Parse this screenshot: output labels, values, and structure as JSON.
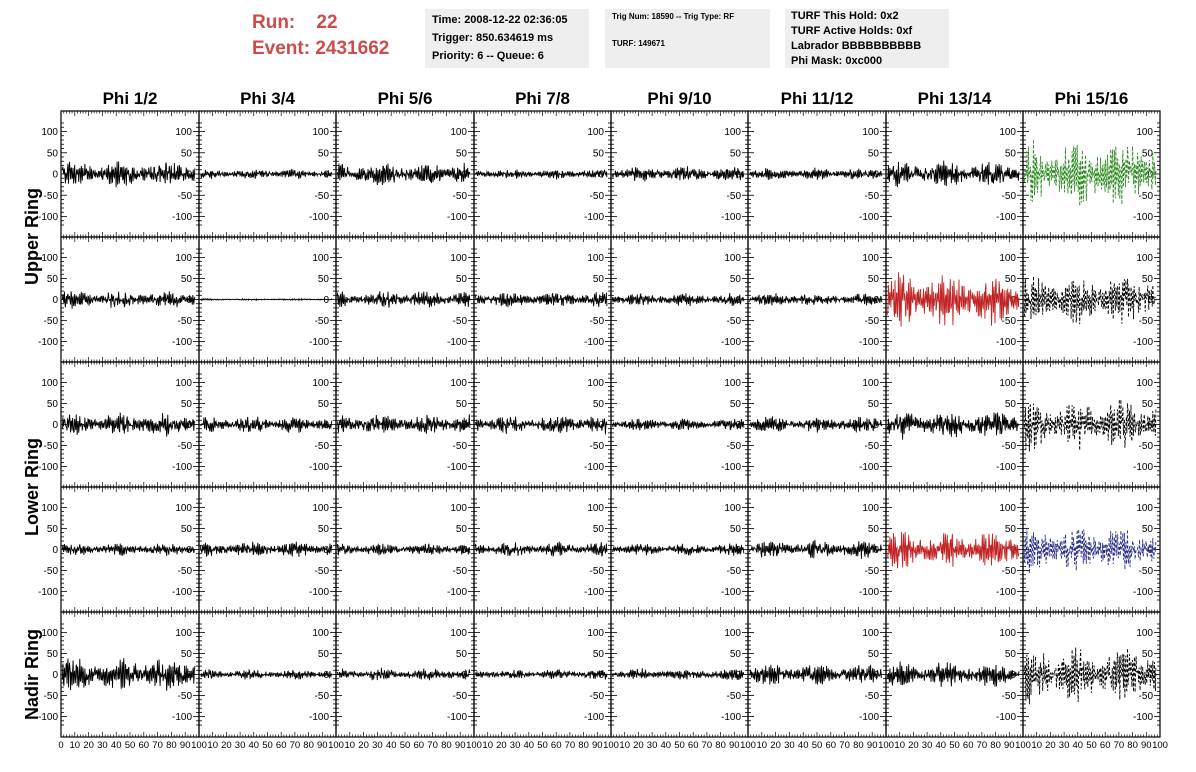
{
  "header": {
    "run_label": "Run:",
    "run_value": "22",
    "event_label": "Event:",
    "event_value": "2431662",
    "time_box": [
      "Time: 2008-12-22 02:36:05",
      "Trigger: 850.634619 ms",
      "Priority: 6 -- Queue: 6"
    ],
    "trig_box": [
      "Trig Num: 18590 -- Trig Type: RF",
      "TURF: 149671"
    ],
    "turf_box": [
      "TURF This Hold: 0x2",
      "TURF Active Holds: 0xf",
      "Labrador BBBBBBBBBB",
      "Phi Mask: 0xc000"
    ]
  },
  "chart_data": {
    "type": "line",
    "columns": [
      "Phi 1/2",
      "Phi 3/4",
      "Phi 5/6",
      "Phi 7/8",
      "Phi 9/10",
      "Phi 11/12",
      "Phi 13/14",
      "Phi 15/16"
    ],
    "ring_labels": [
      "Upper Ring",
      "Lower Ring",
      "Nadir Ring"
    ],
    "panel_rows": 5,
    "xlim": [
      0,
      100
    ],
    "ylim": [
      -120,
      120
    ],
    "y_ticks": [
      -100,
      -50,
      0,
      50,
      100
    ],
    "x_ticks": [
      0,
      10,
      20,
      30,
      40,
      50,
      60,
      70,
      80,
      90,
      100
    ],
    "x_tick_labels": [
      "0",
      "10",
      "20",
      "30",
      "40",
      "50",
      "60",
      "70",
      "80",
      "90",
      "100"
    ],
    "waveform_colors": {
      "normal": "#000000",
      "green": "#2a8a1f",
      "red": "#c22424",
      "blue": "#2a2e8a"
    },
    "panels": [
      [
        {
          "amplitude": 30,
          "style": "solid",
          "color": "normal"
        },
        {
          "amplitude": 12,
          "style": "solid",
          "color": "normal"
        },
        {
          "amplitude": 28,
          "style": "solid",
          "color": "normal"
        },
        {
          "amplitude": 12,
          "style": "solid",
          "color": "normal"
        },
        {
          "amplitude": 18,
          "style": "solid",
          "color": "normal"
        },
        {
          "amplitude": 14,
          "style": "solid",
          "color": "normal"
        },
        {
          "amplitude": 30,
          "style": "solid",
          "color": "normal"
        },
        {
          "amplitude": 80,
          "style": "dashed",
          "color": "green"
        }
      ],
      [
        {
          "amplitude": 22,
          "style": "solid",
          "color": "normal"
        },
        {
          "amplitude": 2,
          "style": "solid",
          "color": "normal"
        },
        {
          "amplitude": 22,
          "style": "solid",
          "color": "normal"
        },
        {
          "amplitude": 18,
          "style": "solid",
          "color": "normal"
        },
        {
          "amplitude": 15,
          "style": "solid",
          "color": "normal"
        },
        {
          "amplitude": 15,
          "style": "solid",
          "color": "normal"
        },
        {
          "amplitude": 65,
          "style": "solid",
          "color": "red"
        },
        {
          "amplitude": 60,
          "style": "dashed",
          "color": "normal"
        }
      ],
      [
        {
          "amplitude": 28,
          "style": "solid",
          "color": "normal"
        },
        {
          "amplitude": 20,
          "style": "solid",
          "color": "normal"
        },
        {
          "amplitude": 25,
          "style": "solid",
          "color": "normal"
        },
        {
          "amplitude": 22,
          "style": "solid",
          "color": "normal"
        },
        {
          "amplitude": 15,
          "style": "solid",
          "color": "normal"
        },
        {
          "amplitude": 20,
          "style": "solid",
          "color": "normal"
        },
        {
          "amplitude": 35,
          "style": "solid",
          "color": "normal"
        },
        {
          "amplitude": 60,
          "style": "dashed",
          "color": "normal"
        }
      ],
      [
        {
          "amplitude": 15,
          "style": "solid",
          "color": "normal"
        },
        {
          "amplitude": 18,
          "style": "solid",
          "color": "normal"
        },
        {
          "amplitude": 15,
          "style": "solid",
          "color": "normal"
        },
        {
          "amplitude": 18,
          "style": "solid",
          "color": "normal"
        },
        {
          "amplitude": 14,
          "style": "solid",
          "color": "normal"
        },
        {
          "amplitude": 22,
          "style": "solid",
          "color": "normal"
        },
        {
          "amplitude": 45,
          "style": "solid",
          "color": "red"
        },
        {
          "amplitude": 55,
          "style": "dashed",
          "color": "blue"
        }
      ],
      [
        {
          "amplitude": 40,
          "style": "solid",
          "color": "normal"
        },
        {
          "amplitude": 12,
          "style": "solid",
          "color": "normal"
        },
        {
          "amplitude": 15,
          "style": "solid",
          "color": "normal"
        },
        {
          "amplitude": 12,
          "style": "solid",
          "color": "normal"
        },
        {
          "amplitude": 14,
          "style": "solid",
          "color": "normal"
        },
        {
          "amplitude": 25,
          "style": "solid",
          "color": "normal"
        },
        {
          "amplitude": 30,
          "style": "solid",
          "color": "normal"
        },
        {
          "amplitude": 70,
          "style": "dashed",
          "color": "normal"
        }
      ]
    ]
  }
}
